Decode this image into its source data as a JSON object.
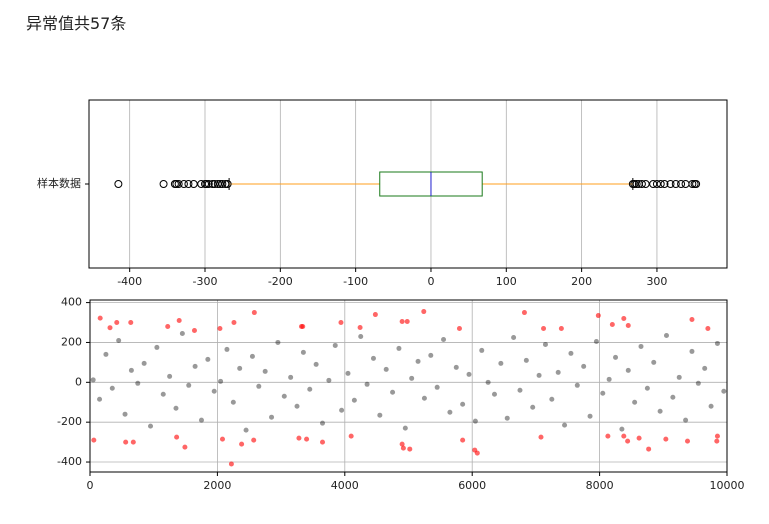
{
  "header": {
    "title": "异常值共57条"
  },
  "chart_data": [
    {
      "type": "box",
      "categories": [
        "样本数据"
      ],
      "boxes": [
        {
          "q1": -68,
          "median": 0,
          "q3": 68,
          "whisker_low": -268,
          "whisker_high": 268,
          "fliers": [
            -415,
            -355,
            -340,
            -338,
            -335,
            -328,
            -322,
            -315,
            -305,
            -300,
            -298,
            -295,
            -290,
            -287,
            -283,
            -280,
            -277,
            -273,
            -270,
            268,
            270,
            273,
            276,
            280,
            285,
            295,
            300,
            305,
            310,
            318,
            325,
            332,
            338,
            347,
            350,
            352
          ]
        }
      ],
      "box_color": "#1a7a1a",
      "median_color": "#1f1fd0",
      "whisker_color": "#ff9f1c",
      "cap_color": "#000000",
      "flier_color": "#000000",
      "xlim": [
        -454,
        393
      ],
      "xticks": [
        -400,
        -300,
        -200,
        -100,
        0,
        100,
        200,
        300
      ],
      "grid": true
    },
    {
      "type": "scatter",
      "series": [
        {
          "color": "#000000",
          "alpha": 0.4,
          "x": [
            50,
            150,
            250,
            350,
            450,
            550,
            650,
            750,
            850,
            950,
            1050,
            1150,
            1250,
            1350,
            1450,
            1550,
            1650,
            1750,
            1850,
            1950,
            2050,
            2150,
            2250,
            2350,
            2450,
            2550,
            2650,
            2750,
            2850,
            2950,
            3050,
            3150,
            3250,
            3350,
            3450,
            3550,
            3650,
            3750,
            3850,
            3950,
            4050,
            4150,
            4250,
            4350,
            4450,
            4550,
            4650,
            4750,
            4850,
            4950,
            5050,
            5150,
            5250,
            5350,
            5450,
            5550,
            5650,
            5750,
            5850,
            5950,
            6050,
            6150,
            6250,
            6350,
            6450,
            6550,
            6650,
            6750,
            6850,
            6950,
            7050,
            7150,
            7250,
            7350,
            7450,
            7550,
            7650,
            7750,
            7850,
            7950,
            8050,
            8150,
            8250,
            8350,
            8450,
            8550,
            8650,
            8750,
            8850,
            8950,
            9050,
            9150,
            9250,
            9350,
            9450,
            9550,
            9650,
            9750,
            9850,
            9950
          ],
          "y": [
            12,
            -85,
            140,
            -30,
            210,
            -160,
            60,
            -5,
            95,
            -220,
            175,
            -60,
            30,
            -130,
            245,
            -15,
            80,
            -190,
            115,
            -45,
            5,
            165,
            -100,
            70,
            -240,
            130,
            -20,
            55,
            -175,
            200,
            -70,
            25,
            -120,
            150,
            -35,
            90,
            -205,
            10,
            185,
            -140,
            45,
            -90,
            230,
            -10,
            120,
            -165,
            65,
            -50,
            170,
            -230,
            20,
            105,
            -80,
            135,
            -25,
            215,
            -150,
            75,
            -110,
            40,
            -195,
            160,
            0,
            -60,
            95,
            -180,
            225,
            -40,
            110,
            -125,
            35,
            190,
            -85,
            50,
            -215,
            145,
            -15,
            80,
            -170,
            205,
            -55,
            15,
            125,
            -235,
            60,
            -100,
            180,
            -30,
            100,
            -145,
            235,
            -75,
            25,
            -190,
            155,
            -5,
            70,
            -120,
            195,
            -45
          ]
        },
        {
          "color": "#ff0000",
          "alpha": 0.6,
          "x": [
            160,
            314,
            420,
            640,
            1220,
            1400,
            1640,
            2040,
            2260,
            2580,
            3320,
            3340,
            3940,
            4240,
            4480,
            4900,
            4980,
            5240,
            5800,
            6820,
            7120,
            7400,
            7980,
            8200,
            8380,
            8450,
            9450,
            9700,
            60,
            560,
            680,
            1360,
            1490,
            2080,
            2220,
            2380,
            2570,
            3280,
            3400,
            3650,
            4100,
            4900,
            4920,
            5020,
            5850,
            6040,
            6080,
            7080,
            8130,
            8380,
            8440,
            8620,
            8770,
            9040,
            9380,
            9840,
            9850
          ],
          "y": [
            322,
            274,
            300,
            300,
            280,
            310,
            260,
            270,
            300,
            350,
            280,
            280,
            300,
            275,
            340,
            305,
            305,
            355,
            270,
            350,
            270,
            270,
            335,
            290,
            320,
            285,
            315,
            270,
            -290,
            -300,
            -300,
            -275,
            -325,
            -285,
            -410,
            -310,
            -290,
            -280,
            -285,
            -300,
            -270,
            -310,
            -330,
            -335,
            -290,
            -340,
            -355,
            -275,
            -270,
            -270,
            -295,
            -280,
            -335,
            -285,
            -295,
            -295,
            -270
          ]
        }
      ],
      "xlim": [
        0,
        10000
      ],
      "ylim": [
        -450,
        413
      ],
      "xticks": [
        0,
        2000,
        4000,
        6000,
        8000,
        10000
      ],
      "yticks": [
        -400,
        -200,
        0,
        200,
        400
      ],
      "grid": true
    }
  ]
}
